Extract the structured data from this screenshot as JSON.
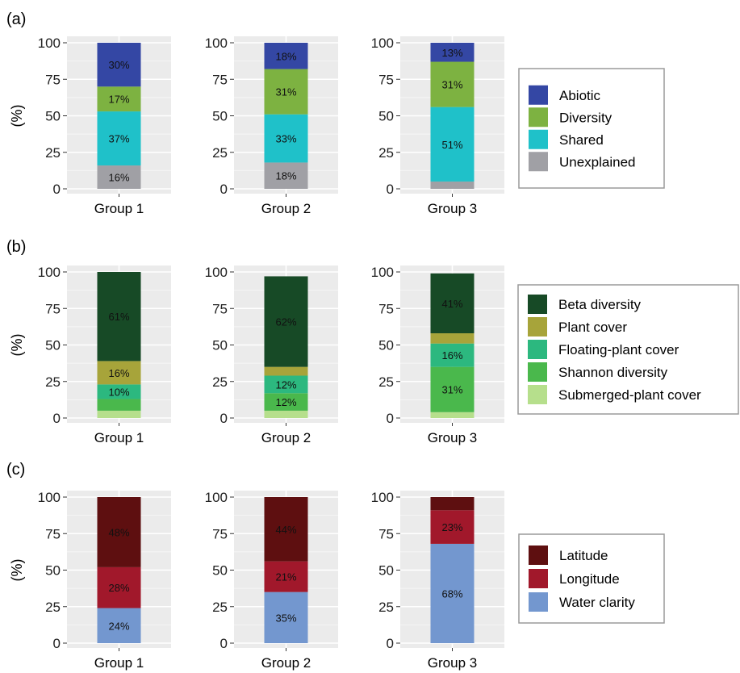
{
  "chart_data": [
    {
      "panel": "(a)",
      "type": "bar",
      "stacked": true,
      "ylabel": "(%)",
      "ylim": [
        0,
        100
      ],
      "yticks": [
        0,
        25,
        50,
        75,
        100
      ],
      "categories": [
        "Group 1",
        "Group 2",
        "Group 3"
      ],
      "series": [
        {
          "name": "Unexplained",
          "color": "#a0a0a5",
          "values": [
            16,
            18,
            5
          ],
          "labels": [
            "16%",
            "18%",
            ""
          ]
        },
        {
          "name": "Shared",
          "color": "#1fc1c9",
          "values": [
            37,
            33,
            51
          ],
          "labels": [
            "37%",
            "33%",
            "51%"
          ]
        },
        {
          "name": "Diversity",
          "color": "#7db241",
          "values": [
            17,
            31,
            31
          ],
          "labels": [
            "17%",
            "31%",
            "31%"
          ]
        },
        {
          "name": "Abiotic",
          "color": "#3447a4",
          "values": [
            30,
            18,
            13
          ],
          "labels": [
            "30%",
            "18%",
            "13%"
          ]
        }
      ],
      "legend": [
        "Abiotic",
        "Diversity",
        "Shared",
        "Unexplained"
      ],
      "legend_position": "right"
    },
    {
      "panel": "(b)",
      "type": "bar",
      "stacked": true,
      "ylabel": "(%)",
      "ylim": [
        0,
        100
      ],
      "yticks": [
        0,
        25,
        50,
        75,
        100
      ],
      "categories": [
        "Group 1",
        "Group 2",
        "Group 3"
      ],
      "series": [
        {
          "name": "Submerged-plant cover",
          "color": "#b6df8c",
          "values": [
            5,
            5,
            4
          ],
          "labels": [
            "",
            "",
            ""
          ]
        },
        {
          "name": "Shannon diversity",
          "color": "#4ab84c",
          "values": [
            8,
            12,
            31
          ],
          "labels": [
            "",
            "12%",
            "31%"
          ]
        },
        {
          "name": "Floating-plant cover",
          "color": "#2cb87f",
          "values": [
            10,
            12,
            16
          ],
          "labels": [
            "10%",
            "12%",
            "16%"
          ]
        },
        {
          "name": "Plant cover",
          "color": "#a7a43a",
          "values": [
            16,
            6,
            7
          ],
          "labels": [
            "16%",
            "",
            ""
          ]
        },
        {
          "name": "Beta diversity",
          "color": "#174a26",
          "values": [
            61,
            62,
            41
          ],
          "labels": [
            "61%",
            "62%",
            "41%"
          ]
        }
      ],
      "legend": [
        "Beta diversity",
        "Plant cover",
        "Floating-plant cover",
        "Shannon diversity",
        "Submerged-plant cover"
      ],
      "legend_position": "right"
    },
    {
      "panel": "(c)",
      "type": "bar",
      "stacked": true,
      "ylabel": "(%)",
      "ylim": [
        0,
        100
      ],
      "yticks": [
        0,
        25,
        50,
        75,
        100
      ],
      "categories": [
        "Group 1",
        "Group 2",
        "Group 3"
      ],
      "series": [
        {
          "name": "Water clarity",
          "color": "#7397cf",
          "values": [
            24,
            35,
            68
          ],
          "labels": [
            "24%",
            "35%",
            "68%"
          ]
        },
        {
          "name": "Longitude",
          "color": "#a1182b",
          "values": [
            28,
            21,
            23
          ],
          "labels": [
            "28%",
            "21%",
            "23%"
          ]
        },
        {
          "name": "Latitude",
          "color": "#5e0f10",
          "values": [
            48,
            44,
            9
          ],
          "labels": [
            "48%",
            "44%",
            ""
          ]
        }
      ],
      "legend": [
        "Latitude",
        "Longitude",
        "Water clarity"
      ],
      "legend_position": "right"
    }
  ]
}
